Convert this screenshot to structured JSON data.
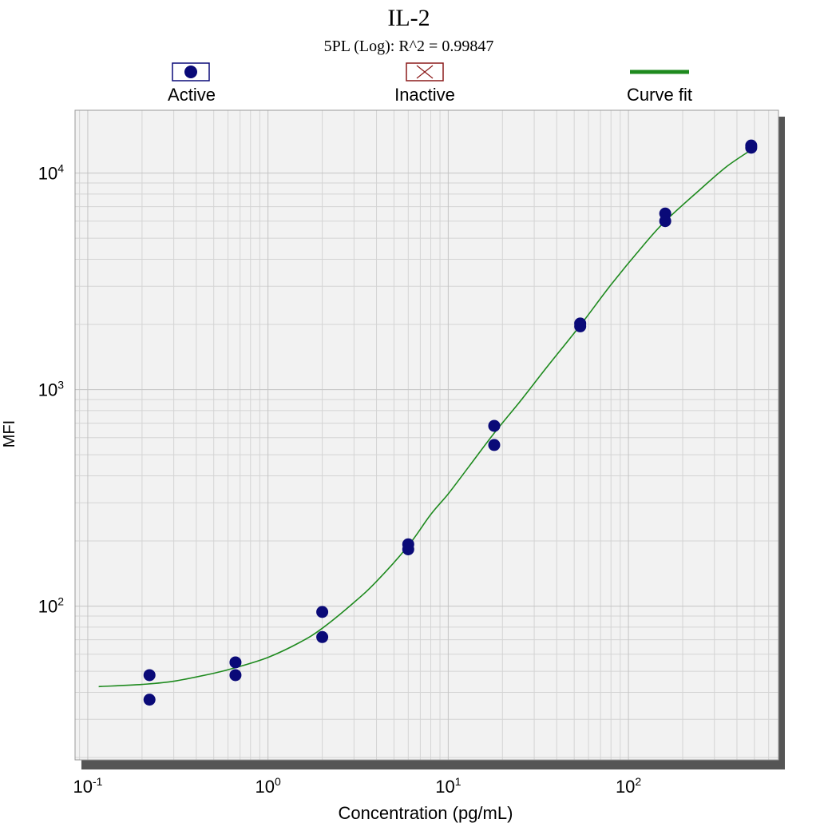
{
  "chart_data": {
    "type": "scatter",
    "title": "IL-2",
    "subtitle": "5PL (Log): R^2 = 0.99847",
    "xlabel": "Concentration (pg/mL)",
    "ylabel": "MFI",
    "x_scale": "log",
    "y_scale": "log",
    "xlim": [
      0.085,
      680
    ],
    "ylim": [
      19.5,
      19500
    ],
    "x_ticks": [
      {
        "value": 0.1,
        "base": "10",
        "exp": "-1"
      },
      {
        "value": 1,
        "base": "10",
        "exp": "0"
      },
      {
        "value": 10,
        "base": "10",
        "exp": "1"
      },
      {
        "value": 100,
        "base": "10",
        "exp": "2"
      }
    ],
    "y_ticks": [
      {
        "value": 100,
        "base": "10",
        "exp": "2"
      },
      {
        "value": 1000,
        "base": "10",
        "exp": "3"
      },
      {
        "value": 10000,
        "base": "10",
        "exp": "4"
      }
    ],
    "grid": true,
    "legend": {
      "placement": "top",
      "items": [
        {
          "label": "Active",
          "marker": "dot"
        },
        {
          "label": "Inactive",
          "marker": "x-box"
        },
        {
          "label": "Curve fit",
          "marker": "line"
        }
      ]
    },
    "series": [
      {
        "name": "Active",
        "type": "scatter",
        "color": "#0a0a78",
        "points": [
          {
            "x": 0.22,
            "y": 48
          },
          {
            "x": 0.22,
            "y": 37
          },
          {
            "x": 0.66,
            "y": 55
          },
          {
            "x": 0.66,
            "y": 48
          },
          {
            "x": 2.0,
            "y": 94
          },
          {
            "x": 2.0,
            "y": 72
          },
          {
            "x": 6.0,
            "y": 193
          },
          {
            "x": 6.0,
            "y": 183
          },
          {
            "x": 18.0,
            "y": 680
          },
          {
            "x": 18.0,
            "y": 555
          },
          {
            "x": 54.0,
            "y": 2020
          },
          {
            "x": 54.0,
            "y": 1960
          },
          {
            "x": 160.0,
            "y": 6500
          },
          {
            "x": 160.0,
            "y": 6000
          },
          {
            "x": 480.0,
            "y": 13400
          },
          {
            "x": 480.0,
            "y": 13100
          }
        ]
      },
      {
        "name": "Inactive",
        "type": "scatter",
        "color": "#8b1a1a",
        "points": []
      },
      {
        "name": "Curve fit",
        "type": "line",
        "color": "#1e8a1e",
        "points": [
          {
            "x": 0.115,
            "y": 42.5
          },
          {
            "x": 0.2,
            "y": 43.5
          },
          {
            "x": 0.3,
            "y": 45
          },
          {
            "x": 0.5,
            "y": 49
          },
          {
            "x": 0.66,
            "y": 52
          },
          {
            "x": 1.0,
            "y": 58
          },
          {
            "x": 1.5,
            "y": 68
          },
          {
            "x": 2.0,
            "y": 79
          },
          {
            "x": 3.0,
            "y": 104
          },
          {
            "x": 4.0,
            "y": 130
          },
          {
            "x": 6.0,
            "y": 190
          },
          {
            "x": 8.0,
            "y": 265
          },
          {
            "x": 10.0,
            "y": 330
          },
          {
            "x": 13.0,
            "y": 440
          },
          {
            "x": 18.0,
            "y": 630
          },
          {
            "x": 25.0,
            "y": 880
          },
          {
            "x": 35.0,
            "y": 1260
          },
          {
            "x": 54.0,
            "y": 1980
          },
          {
            "x": 80.0,
            "y": 3050
          },
          {
            "x": 120.0,
            "y": 4600
          },
          {
            "x": 160.0,
            "y": 6000
          },
          {
            "x": 250.0,
            "y": 8400
          },
          {
            "x": 350.0,
            "y": 10700
          },
          {
            "x": 480.0,
            "y": 12800
          }
        ]
      }
    ]
  }
}
